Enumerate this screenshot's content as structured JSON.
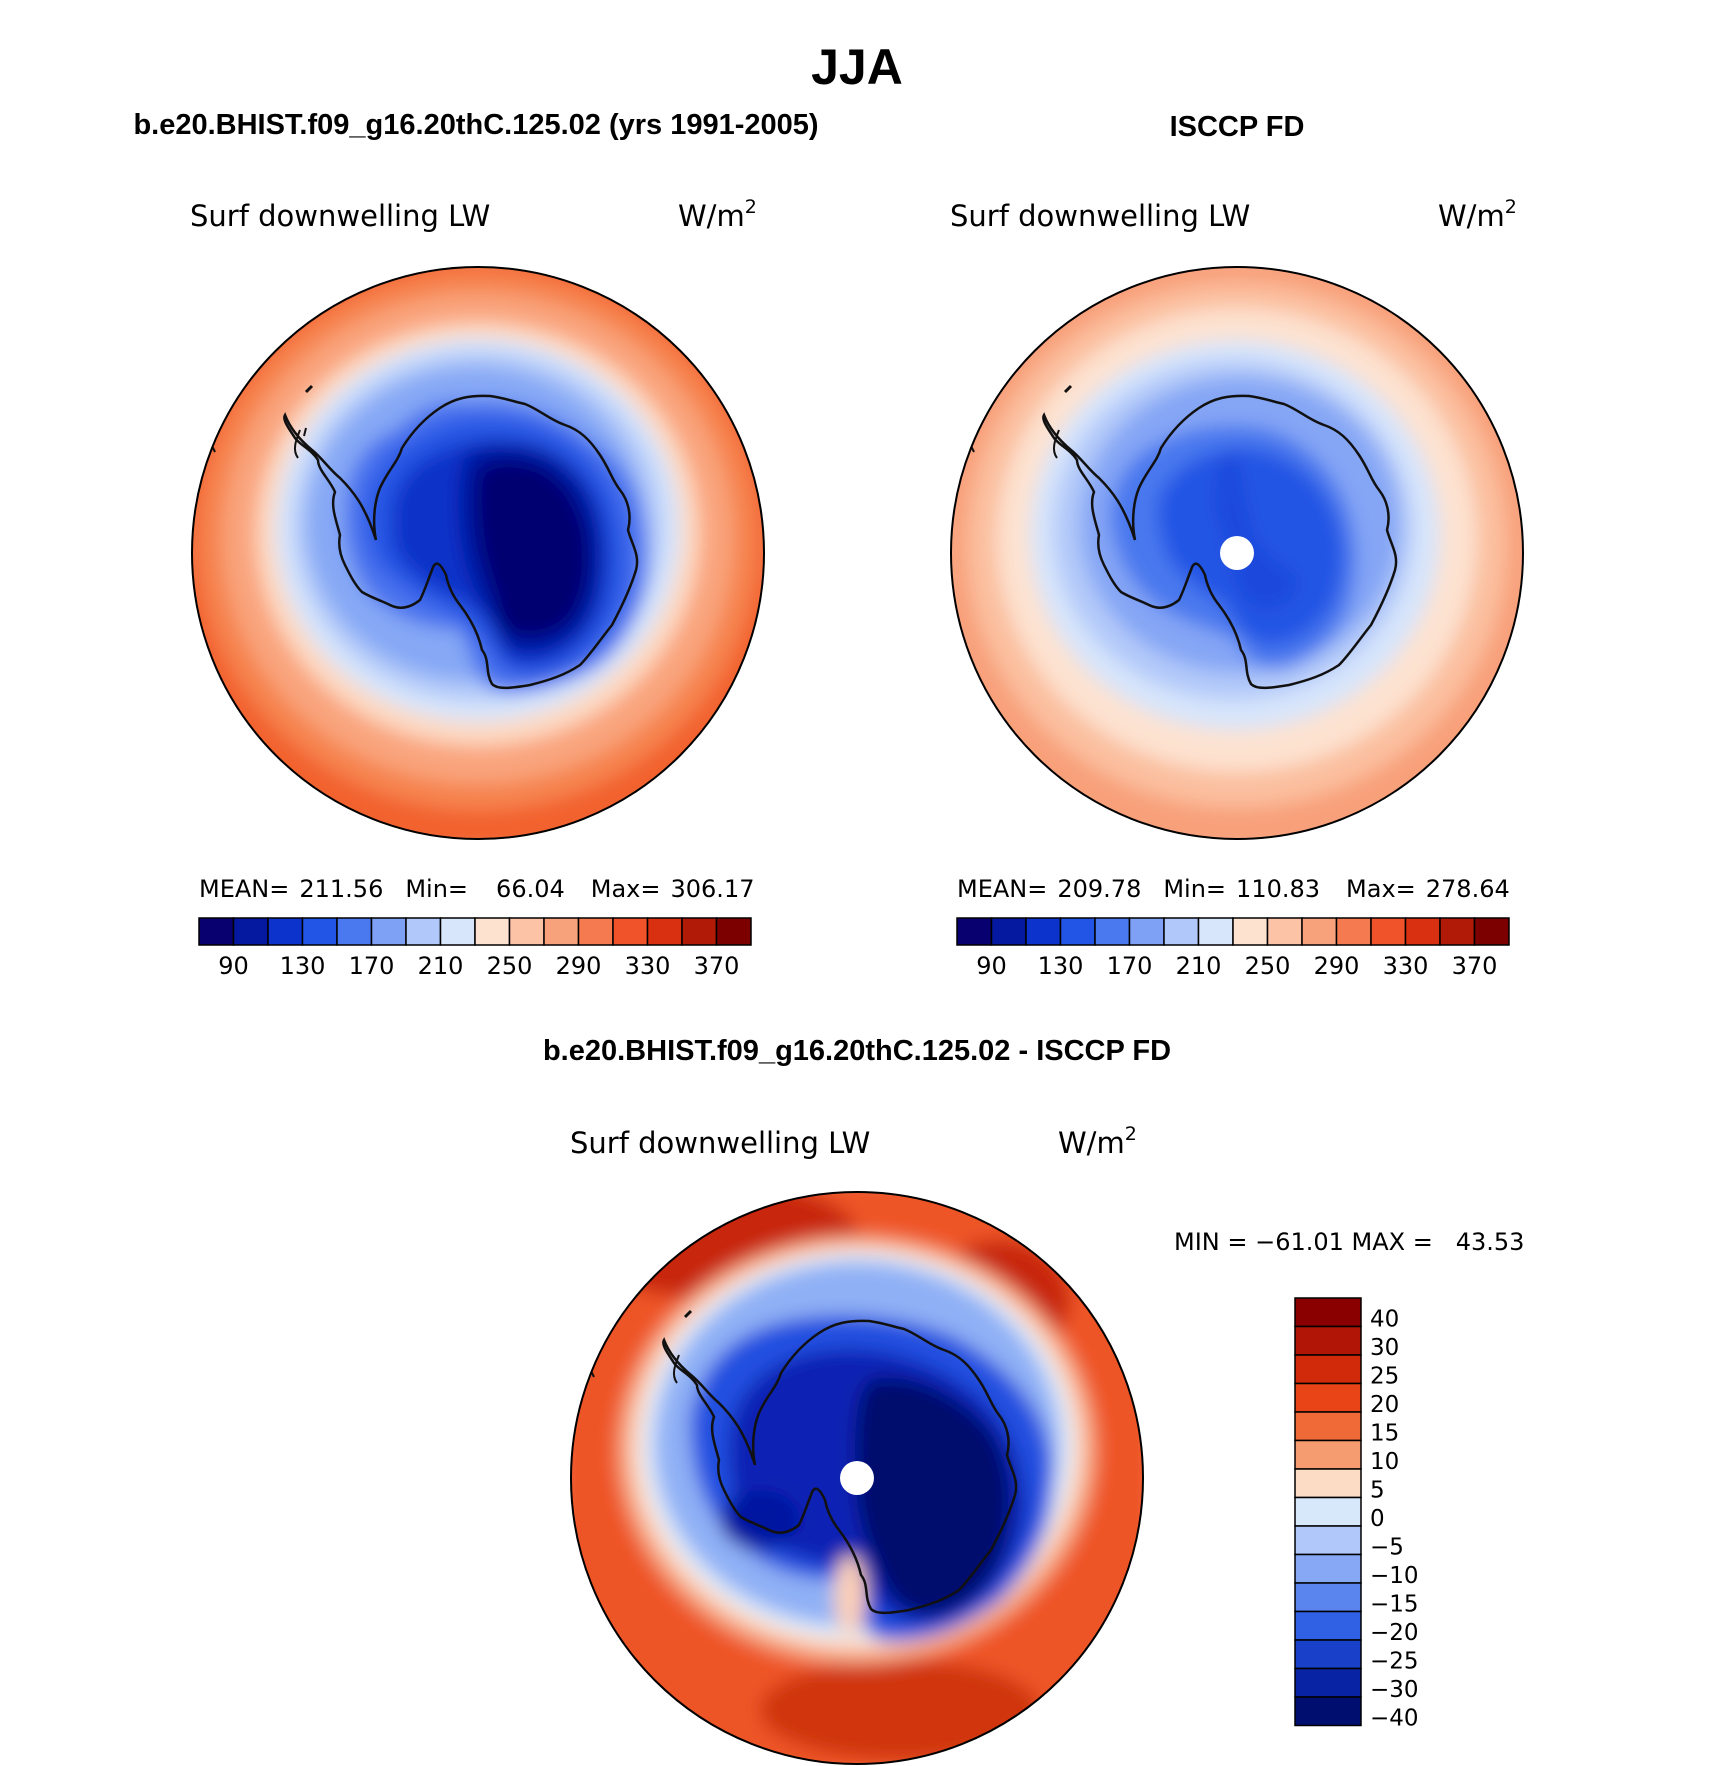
{
  "season_title": "JJA",
  "panels": [
    {
      "case_title": "b.e20.BHIST.f09_g16.20thC.125.02 (yrs 1991-2005)",
      "variable": "Surf downwelling LW",
      "units_base": "W/m",
      "units_exp": "2",
      "stats": {
        "mean_label": "MEAN=",
        "mean": "211.56",
        "min_label": "Min=",
        "min": "66.04",
        "max_label": "Max=",
        "max": "306.17"
      },
      "polar_hole": false
    },
    {
      "case_title": "ISCCP FD",
      "variable": "Surf downwelling LW",
      "units_base": "W/m",
      "units_exp": "2",
      "stats": {
        "mean_label": "MEAN=",
        "mean": "209.78",
        "min_label": "Min=",
        "min": "110.83",
        "max_label": "Max=",
        "max": "278.64"
      },
      "polar_hole": true
    }
  ],
  "abs_colorbar": {
    "colors": [
      "#08006e",
      "#0418a0",
      "#0c33cc",
      "#2255e6",
      "#4a78ee",
      "#7ea0f5",
      "#b0c8fa",
      "#d8e6fb",
      "#fde2d0",
      "#fcc3a6",
      "#f8a27c",
      "#f57a50",
      "#f0522a",
      "#d83010",
      "#b01a06",
      "#7c0000"
    ],
    "labels": [
      "90",
      "130",
      "170",
      "210",
      "250",
      "290",
      "330",
      "370"
    ]
  },
  "diff_panel": {
    "title": "b.e20.BHIST.f09_g16.20thC.125.02 - ISCCP FD",
    "variable": "Surf downwelling LW",
    "units_base": "W/m",
    "units_exp": "2",
    "minmax": "MIN = −61.01 MAX =   43.53",
    "polar_hole": true
  },
  "diff_colorbar": {
    "colors": [
      "#8a0000",
      "#b01505",
      "#d02a0a",
      "#e84418",
      "#f06a38",
      "#f59c70",
      "#fcdcc4",
      "#d8e8fb",
      "#b0c8fa",
      "#86a8f5",
      "#5a84ee",
      "#3060e4",
      "#1840c8",
      "#0824a4",
      "#000e70"
    ],
    "labels": [
      "40",
      "30",
      "25",
      "20",
      "15",
      "10",
      "5",
      "0",
      "−5",
      "−10",
      "−15",
      "−20",
      "−25",
      "−30",
      "−40"
    ]
  },
  "chart_data": {
    "type": "heatmap",
    "title": "JJA",
    "projection": "south-polar-stereographic",
    "maps": [
      {
        "name": "b.e20.BHIST.f09_g16.20thC.125.02 (yrs 1991-2005)",
        "variable": "Surf downwelling LW",
        "units": "W/m2",
        "mean": 211.56,
        "min": 66.04,
        "max": 306.17,
        "contour_levels": [
          70,
          90,
          110,
          130,
          150,
          170,
          190,
          210,
          230,
          250,
          270,
          290,
          310,
          330,
          350,
          370,
          390
        ]
      },
      {
        "name": "ISCCP FD",
        "variable": "Surf downwelling LW",
        "units": "W/m2",
        "mean": 209.78,
        "min": 110.83,
        "max": 278.64,
        "contour_levels": [
          70,
          90,
          110,
          130,
          150,
          170,
          190,
          210,
          230,
          250,
          270,
          290,
          310,
          330,
          350,
          370,
          390
        ]
      },
      {
        "name": "b.e20.BHIST.f09_g16.20thC.125.02 - ISCCP FD",
        "variable": "Surf downwelling LW",
        "units": "W/m2",
        "min": -61.01,
        "max": 43.53,
        "contour_levels": [
          -40,
          -30,
          -25,
          -20,
          -15,
          -10,
          -5,
          0,
          5,
          10,
          15,
          20,
          25,
          30,
          40
        ]
      }
    ]
  },
  "colors": {
    "outline": "#000000",
    "coast": "#111111",
    "hole": "#ffffff"
  }
}
